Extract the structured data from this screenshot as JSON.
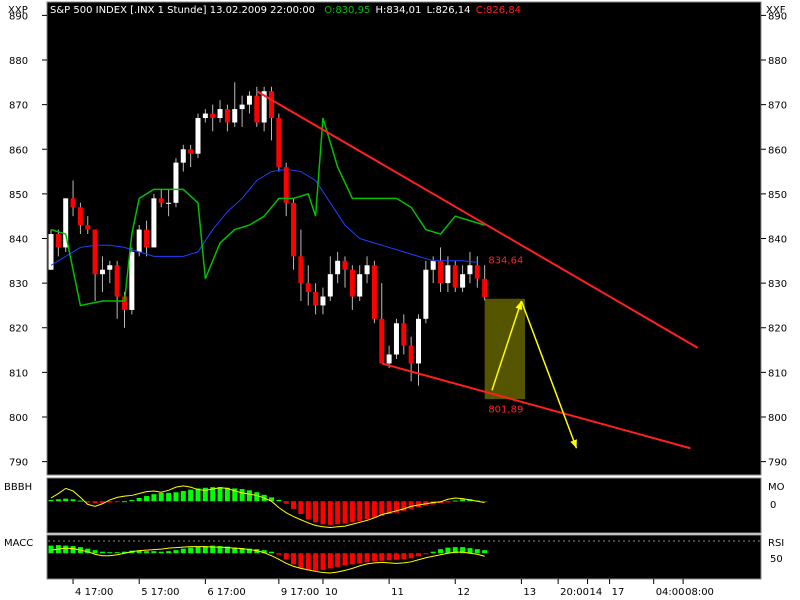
{
  "header": {
    "left_symbol": "XXP",
    "right_symbol": "XXF",
    "title": "S&P 500 INDEX [.INX  1 Stunde] 13.02.2009 22:00:00",
    "open_text": "O:830,95",
    "high_text": "H:834,01",
    "low_text": "L:826,14",
    "close_text": "C:826,84"
  },
  "colors": {
    "background": "#000000",
    "bull_candle": "#ffffff",
    "bear_candle": "#ff0000",
    "upper_band": "#00c000",
    "moving_average": "#2040ff",
    "trendline": "#ff2020",
    "projection_arrow": "#ffff00",
    "target_box": "#555500",
    "histogram_positive": "#00ff00",
    "histogram_negative": "#ff0000",
    "signal_line": "#ffff00"
  },
  "chart_data": {
    "type": "candlestick",
    "ylim": [
      787,
      893
    ],
    "yticks": [
      790,
      800,
      810,
      820,
      830,
      840,
      850,
      860,
      870,
      880,
      890
    ],
    "xticks": [
      {
        "label": "4 17:00",
        "bar": 3
      },
      {
        "label": "5 17:00",
        "bar": 12
      },
      {
        "label": "6 17:00",
        "bar": 21
      },
      {
        "label": "9 17:00",
        "bar": 31
      },
      {
        "label": "10",
        "bar": 37
      },
      {
        "label": "11",
        "bar": 46
      },
      {
        "label": "12",
        "bar": 55
      },
      {
        "label": "13",
        "bar": 64
      },
      {
        "label": "20:00",
        "bar": 69
      },
      {
        "label": "14",
        "bar": 73
      },
      {
        "label": "17",
        "bar": 76
      },
      {
        "label": "04:00",
        "bar": 82
      },
      {
        "label": "08:00",
        "bar": 86
      }
    ],
    "candles": [
      [
        833,
        841,
        833,
        842
      ],
      [
        841,
        838,
        836,
        842
      ],
      [
        838,
        849,
        837,
        849
      ],
      [
        849,
        847,
        845,
        853
      ],
      [
        847,
        843,
        841,
        848
      ],
      [
        843,
        842,
        841,
        845
      ],
      [
        842,
        832,
        826,
        842
      ],
      [
        832,
        833,
        828,
        836
      ],
      [
        833,
        834,
        830,
        835
      ],
      [
        834,
        827,
        822,
        835
      ],
      [
        827,
        824,
        820,
        828
      ],
      [
        824,
        837,
        823,
        838
      ],
      [
        837,
        842,
        836,
        843
      ],
      [
        842,
        838,
        836,
        844
      ],
      [
        838,
        849,
        838,
        850
      ],
      [
        849,
        848,
        847,
        851
      ],
      [
        848,
        848,
        845,
        851
      ],
      [
        848,
        857,
        847,
        858
      ],
      [
        857,
        860,
        855,
        861
      ],
      [
        860,
        859,
        856,
        861
      ],
      [
        859,
        867,
        858,
        868
      ],
      [
        867,
        868,
        866,
        869
      ],
      [
        868,
        867,
        864,
        870
      ],
      [
        867,
        869,
        866,
        871
      ],
      [
        869,
        866,
        864,
        870
      ],
      [
        866,
        869,
        865,
        875
      ],
      [
        869,
        870,
        865,
        872
      ],
      [
        870,
        872,
        868,
        873
      ],
      [
        872,
        866,
        865,
        874
      ],
      [
        866,
        873,
        864,
        874
      ],
      [
        873,
        867,
        862,
        874
      ],
      [
        867,
        856,
        855,
        868
      ],
      [
        856,
        848,
        845,
        857
      ],
      [
        848,
        836,
        833,
        849
      ],
      [
        836,
        830,
        826,
        842
      ],
      [
        830,
        828,
        825,
        834
      ],
      [
        828,
        825,
        823,
        830
      ],
      [
        825,
        827,
        823,
        829
      ],
      [
        827,
        832,
        826,
        836
      ],
      [
        832,
        835,
        830,
        837
      ],
      [
        835,
        833,
        829,
        836
      ],
      [
        833,
        827,
        824,
        834
      ],
      [
        827,
        832,
        826,
        834
      ],
      [
        832,
        834,
        830,
        836
      ],
      [
        834,
        822,
        821,
        835
      ],
      [
        822,
        812,
        812,
        830
      ],
      [
        812,
        814,
        811,
        816
      ],
      [
        814,
        821,
        813,
        822
      ],
      [
        821,
        816,
        814,
        823
      ],
      [
        816,
        812,
        808,
        818
      ],
      [
        812,
        822,
        807,
        823
      ],
      [
        822,
        833,
        821,
        835
      ],
      [
        833,
        835,
        830,
        836
      ],
      [
        835,
        830,
        828,
        838
      ],
      [
        830,
        834,
        828,
        836
      ],
      [
        834,
        829,
        828,
        835
      ],
      [
        829,
        832,
        828,
        834
      ],
      [
        832,
        834,
        830,
        837
      ],
      [
        834,
        831,
        829,
        836
      ],
      [
        830.95,
        826.84,
        826.14,
        834.01
      ]
    ],
    "upper_band": [
      [
        0,
        842
      ],
      [
        2,
        841
      ],
      [
        4,
        825
      ],
      [
        7,
        826
      ],
      [
        10,
        826
      ],
      [
        11,
        841
      ],
      [
        12,
        849
      ],
      [
        14,
        851
      ],
      [
        16,
        851
      ],
      [
        18,
        851
      ],
      [
        20,
        848
      ],
      [
        21,
        831
      ],
      [
        23,
        839
      ],
      [
        25,
        842
      ],
      [
        27,
        843
      ],
      [
        29,
        845
      ],
      [
        31,
        849
      ],
      [
        33,
        849
      ],
      [
        35,
        850
      ],
      [
        36,
        845
      ],
      [
        37,
        867
      ],
      [
        39,
        856
      ],
      [
        41,
        849
      ],
      [
        43,
        849
      ],
      [
        45,
        849
      ],
      [
        47,
        849
      ],
      [
        49,
        847
      ],
      [
        51,
        842
      ],
      [
        53,
        841
      ],
      [
        55,
        845
      ],
      [
        57,
        844
      ],
      [
        59,
        843
      ]
    ],
    "moving_average": [
      [
        0,
        834
      ],
      [
        2,
        836
      ],
      [
        4,
        838
      ],
      [
        6,
        838.5
      ],
      [
        8,
        838.5
      ],
      [
        10,
        838
      ],
      [
        12,
        837
      ],
      [
        14,
        836
      ],
      [
        16,
        836
      ],
      [
        18,
        836
      ],
      [
        20,
        837
      ],
      [
        22,
        842
      ],
      [
        24,
        846
      ],
      [
        26,
        849
      ],
      [
        28,
        853
      ],
      [
        30,
        855
      ],
      [
        32,
        855.5
      ],
      [
        34,
        855
      ],
      [
        36,
        853
      ],
      [
        38,
        848
      ],
      [
        40,
        843
      ],
      [
        42,
        840
      ],
      [
        44,
        839
      ],
      [
        46,
        838
      ],
      [
        48,
        837
      ],
      [
        50,
        836
      ],
      [
        52,
        835
      ],
      [
        54,
        835
      ],
      [
        56,
        835
      ],
      [
        58,
        834.64
      ]
    ],
    "annotations": [
      {
        "text": "834,64",
        "value": 834.64
      },
      {
        "text": "801,89",
        "value": 801.89
      }
    ],
    "trendlines": [
      {
        "from": {
          "bar": 28,
          "value": 873
        },
        "to": {
          "bar": 88,
          "value": 815.5
        }
      },
      {
        "from": {
          "bar": 45,
          "value": 812
        },
        "to": {
          "bar": 87,
          "value": 793
        }
      }
    ],
    "target_box": {
      "bar_from": 59,
      "bar_to": 64.5,
      "value_from": 804,
      "value_to": 826.5
    },
    "projection": [
      {
        "from": {
          "bar": 60,
          "value": 806
        },
        "to": {
          "bar": 64,
          "value": 826
        }
      },
      {
        "from": {
          "bar": 64,
          "value": 826
        },
        "to": {
          "bar": 71.5,
          "value": 793
        }
      }
    ]
  },
  "indicator1": {
    "left_label": "BBBH",
    "right_label": "MO",
    "right_tick": "0",
    "ylim": [
      -4.5,
      3
    ],
    "hist": [
      0.2,
      0.3,
      0.4,
      0.3,
      0.1,
      -0.2,
      -0.3,
      -0.3,
      -0.2,
      -0.1,
      0.0,
      0.2,
      0.5,
      0.8,
      1.1,
      1.3,
      1.3,
      1.4,
      1.6,
      1.8,
      2.0,
      2.1,
      2.2,
      2.2,
      2.1,
      2.0,
      1.9,
      1.7,
      1.4,
      1.0,
      0.6,
      0.2,
      -0.4,
      -1.2,
      -2.0,
      -2.8,
      -3.3,
      -3.6,
      -3.7,
      -3.6,
      -3.5,
      -3.3,
      -3.1,
      -2.8,
      -2.6,
      -2.3,
      -2.0,
      -1.8,
      -1.5,
      -1.2,
      -0.9,
      -0.7,
      -0.5,
      -0.3,
      -0.2,
      0.1,
      0.3,
      0.3,
      0.1,
      -0.1
    ],
    "signal": [
      0.5,
      1.2,
      2.0,
      1.6,
      0.6,
      -0.5,
      -0.8,
      -0.4,
      0.2,
      0.6,
      0.8,
      0.9,
      1.2,
      1.5,
      1.6,
      1.4,
      1.7,
      2.2,
      2.4,
      2.2,
      1.8,
      1.7,
      1.9,
      2.1,
      2.0,
      1.6,
      1.3,
      1.1,
      0.9,
      0.5,
      0.0,
      -1.0,
      -1.8,
      -2.4,
      -2.9,
      -3.4,
      -3.8,
      -4.0,
      -4.1,
      -4.0,
      -3.9,
      -3.6,
      -3.3,
      -3.0,
      -2.6,
      -2.1,
      -1.8,
      -1.5,
      -1.2,
      -0.8,
      -0.6,
      -0.4,
      -0.2,
      -0.1,
      0.3,
      0.5,
      0.4,
      0.2,
      0.0,
      -0.2
    ]
  },
  "indicator2": {
    "left_label": "MACC",
    "right_label": "RSI",
    "right_tick": "50",
    "ylim": [
      -4.5,
      3
    ],
    "hist": [
      1.5,
      1.6,
      1.5,
      1.4,
      1.2,
      0.9,
      0.6,
      0.3,
      0.2,
      0.2,
      0.3,
      0.5,
      0.5,
      0.4,
      0.4,
      0.3,
      0.4,
      0.6,
      0.9,
      1.1,
      1.3,
      1.4,
      1.5,
      1.4,
      1.3,
      1.1,
      1.0,
      0.9,
      0.8,
      0.6,
      0.3,
      -0.3,
      -1.2,
      -2.2,
      -3.0,
      -3.4,
      -3.5,
      -3.3,
      -3.0,
      -2.7,
      -2.4,
      -2.2,
      -2.0,
      -1.8,
      -1.6,
      -1.5,
      -1.4,
      -1.3,
      -1.2,
      -1.0,
      -0.6,
      -0.2,
      0.3,
      0.8,
      1.1,
      1.2,
      1.2,
      1.0,
      0.8,
      0.6
    ],
    "signal": [
      0.6,
      0.8,
      1.0,
      0.9,
      0.6,
      0.3,
      -0.2,
      -0.5,
      -0.5,
      -0.3,
      0.0,
      0.3,
      0.5,
      0.6,
      0.7,
      0.8,
      1.0,
      1.1,
      1.2,
      1.3,
      1.3,
      1.3,
      1.2,
      1.2,
      1.1,
      1.0,
      0.9,
      0.7,
      0.5,
      0.1,
      -0.5,
      -1.2,
      -2.0,
      -2.6,
      -3.0,
      -3.3,
      -3.6,
      -3.8,
      -3.9,
      -3.7,
      -3.4,
      -3.0,
      -2.5,
      -2.1,
      -1.9,
      -1.8,
      -1.9,
      -2.0,
      -1.9,
      -1.7,
      -1.3,
      -0.9,
      -0.6,
      -0.3,
      0.0,
      0.2,
      0.2,
      0.0,
      -0.2,
      -0.6
    ]
  }
}
